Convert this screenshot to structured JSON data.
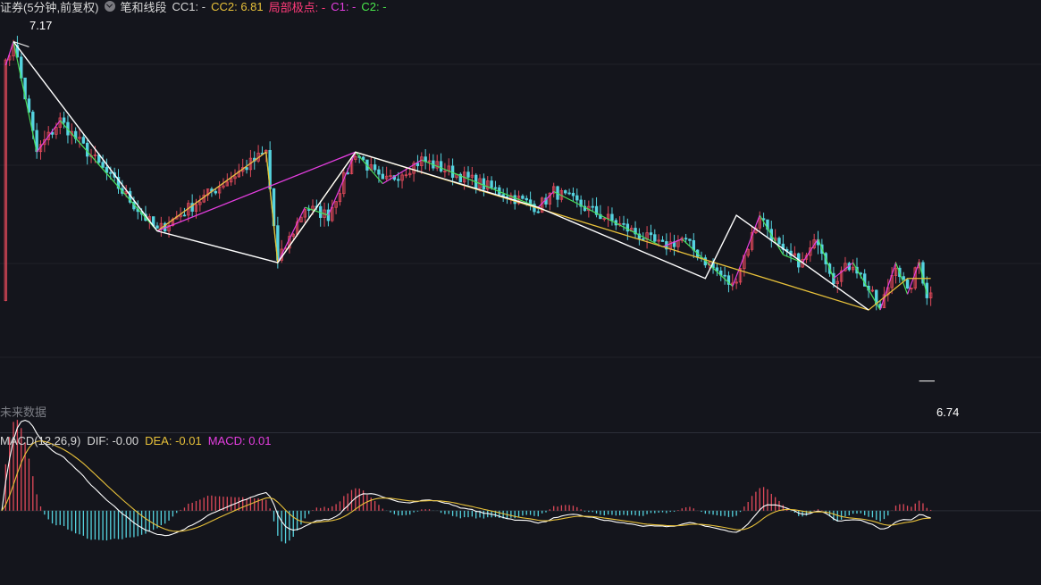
{
  "header": {
    "symbol_text": "证券(5分钟,前复权)",
    "indicator_dropdown_icon": "chevron-down-icon",
    "indicator_name": "笔和线段",
    "cc1": "CC1: -",
    "cc2": "CC2: 6.81",
    "local_extreme": "局部极点: -",
    "c1": "C1: -",
    "c2": "C2: -"
  },
  "future_label": "未来数据",
  "macd_header": {
    "name": "MACD(12,26,9)",
    "dif": "DIF: -0.00",
    "dea": "DEA: -0.01",
    "macd": "MACD: 0.01"
  },
  "colors": {
    "background": "#14151c",
    "up": "#e0495a",
    "down": "#55d3df",
    "white_line": "#ffffff",
    "yellow_line": "#e8c13a",
    "magenta_line": "#e53ee0",
    "green_line": "#4be05a",
    "cc2": "#e8c13a",
    "local_extreme": "#ff3b7a",
    "c1": "#e53ee0",
    "c2": "#49e64b"
  },
  "chart_data": {
    "type": "candlestick",
    "ylim": [
      6.7,
      7.2
    ],
    "max_label": "7.17",
    "min_label": "6.74",
    "max_price": 7.17,
    "min_price": 6.74,
    "bi_vertices": [
      [
        1,
        7.14
      ],
      [
        3,
        7.17
      ],
      [
        9,
        7.03
      ],
      [
        15,
        7.07
      ],
      [
        40,
        6.93
      ],
      [
        68,
        7.03
      ],
      [
        71,
        6.89
      ],
      [
        78,
        6.96
      ],
      [
        84,
        6.95
      ],
      [
        91,
        7.03
      ],
      [
        98,
        6.99
      ],
      [
        108,
        7.02
      ],
      [
        138,
        6.96
      ],
      [
        142,
        6.98
      ],
      [
        170,
        6.91
      ],
      [
        175,
        6.92
      ],
      [
        188,
        6.86
      ],
      [
        195,
        6.95
      ],
      [
        201,
        6.9
      ],
      [
        206,
        6.89
      ],
      [
        210,
        6.92
      ],
      [
        214,
        6.87
      ],
      [
        219,
        6.89
      ],
      [
        226,
        6.83
      ],
      [
        230,
        6.89
      ],
      [
        233,
        6.85
      ],
      [
        236,
        6.89
      ],
      [
        238,
        6.85
      ]
    ],
    "segment_white": [
      [
        3,
        7.17
      ],
      [
        40,
        6.93
      ],
      [
        71,
        6.89
      ],
      [
        91,
        7.03
      ],
      [
        138,
        6.96
      ],
      [
        181,
        6.87
      ],
      [
        189,
        6.95
      ],
      [
        223,
        6.83
      ]
    ],
    "segment_yellow": [
      [
        40,
        6.93
      ],
      [
        68,
        7.03
      ],
      [
        71,
        6.89
      ],
      [
        91,
        7.03
      ],
      [
        223,
        6.83
      ],
      [
        233,
        6.87
      ],
      [
        239,
        6.87
      ]
    ],
    "segment_magenta": [
      [
        40,
        6.93
      ],
      [
        91,
        7.03
      ]
    ],
    "macd": {
      "ylim": [
        -0.06,
        0.05
      ]
    }
  }
}
